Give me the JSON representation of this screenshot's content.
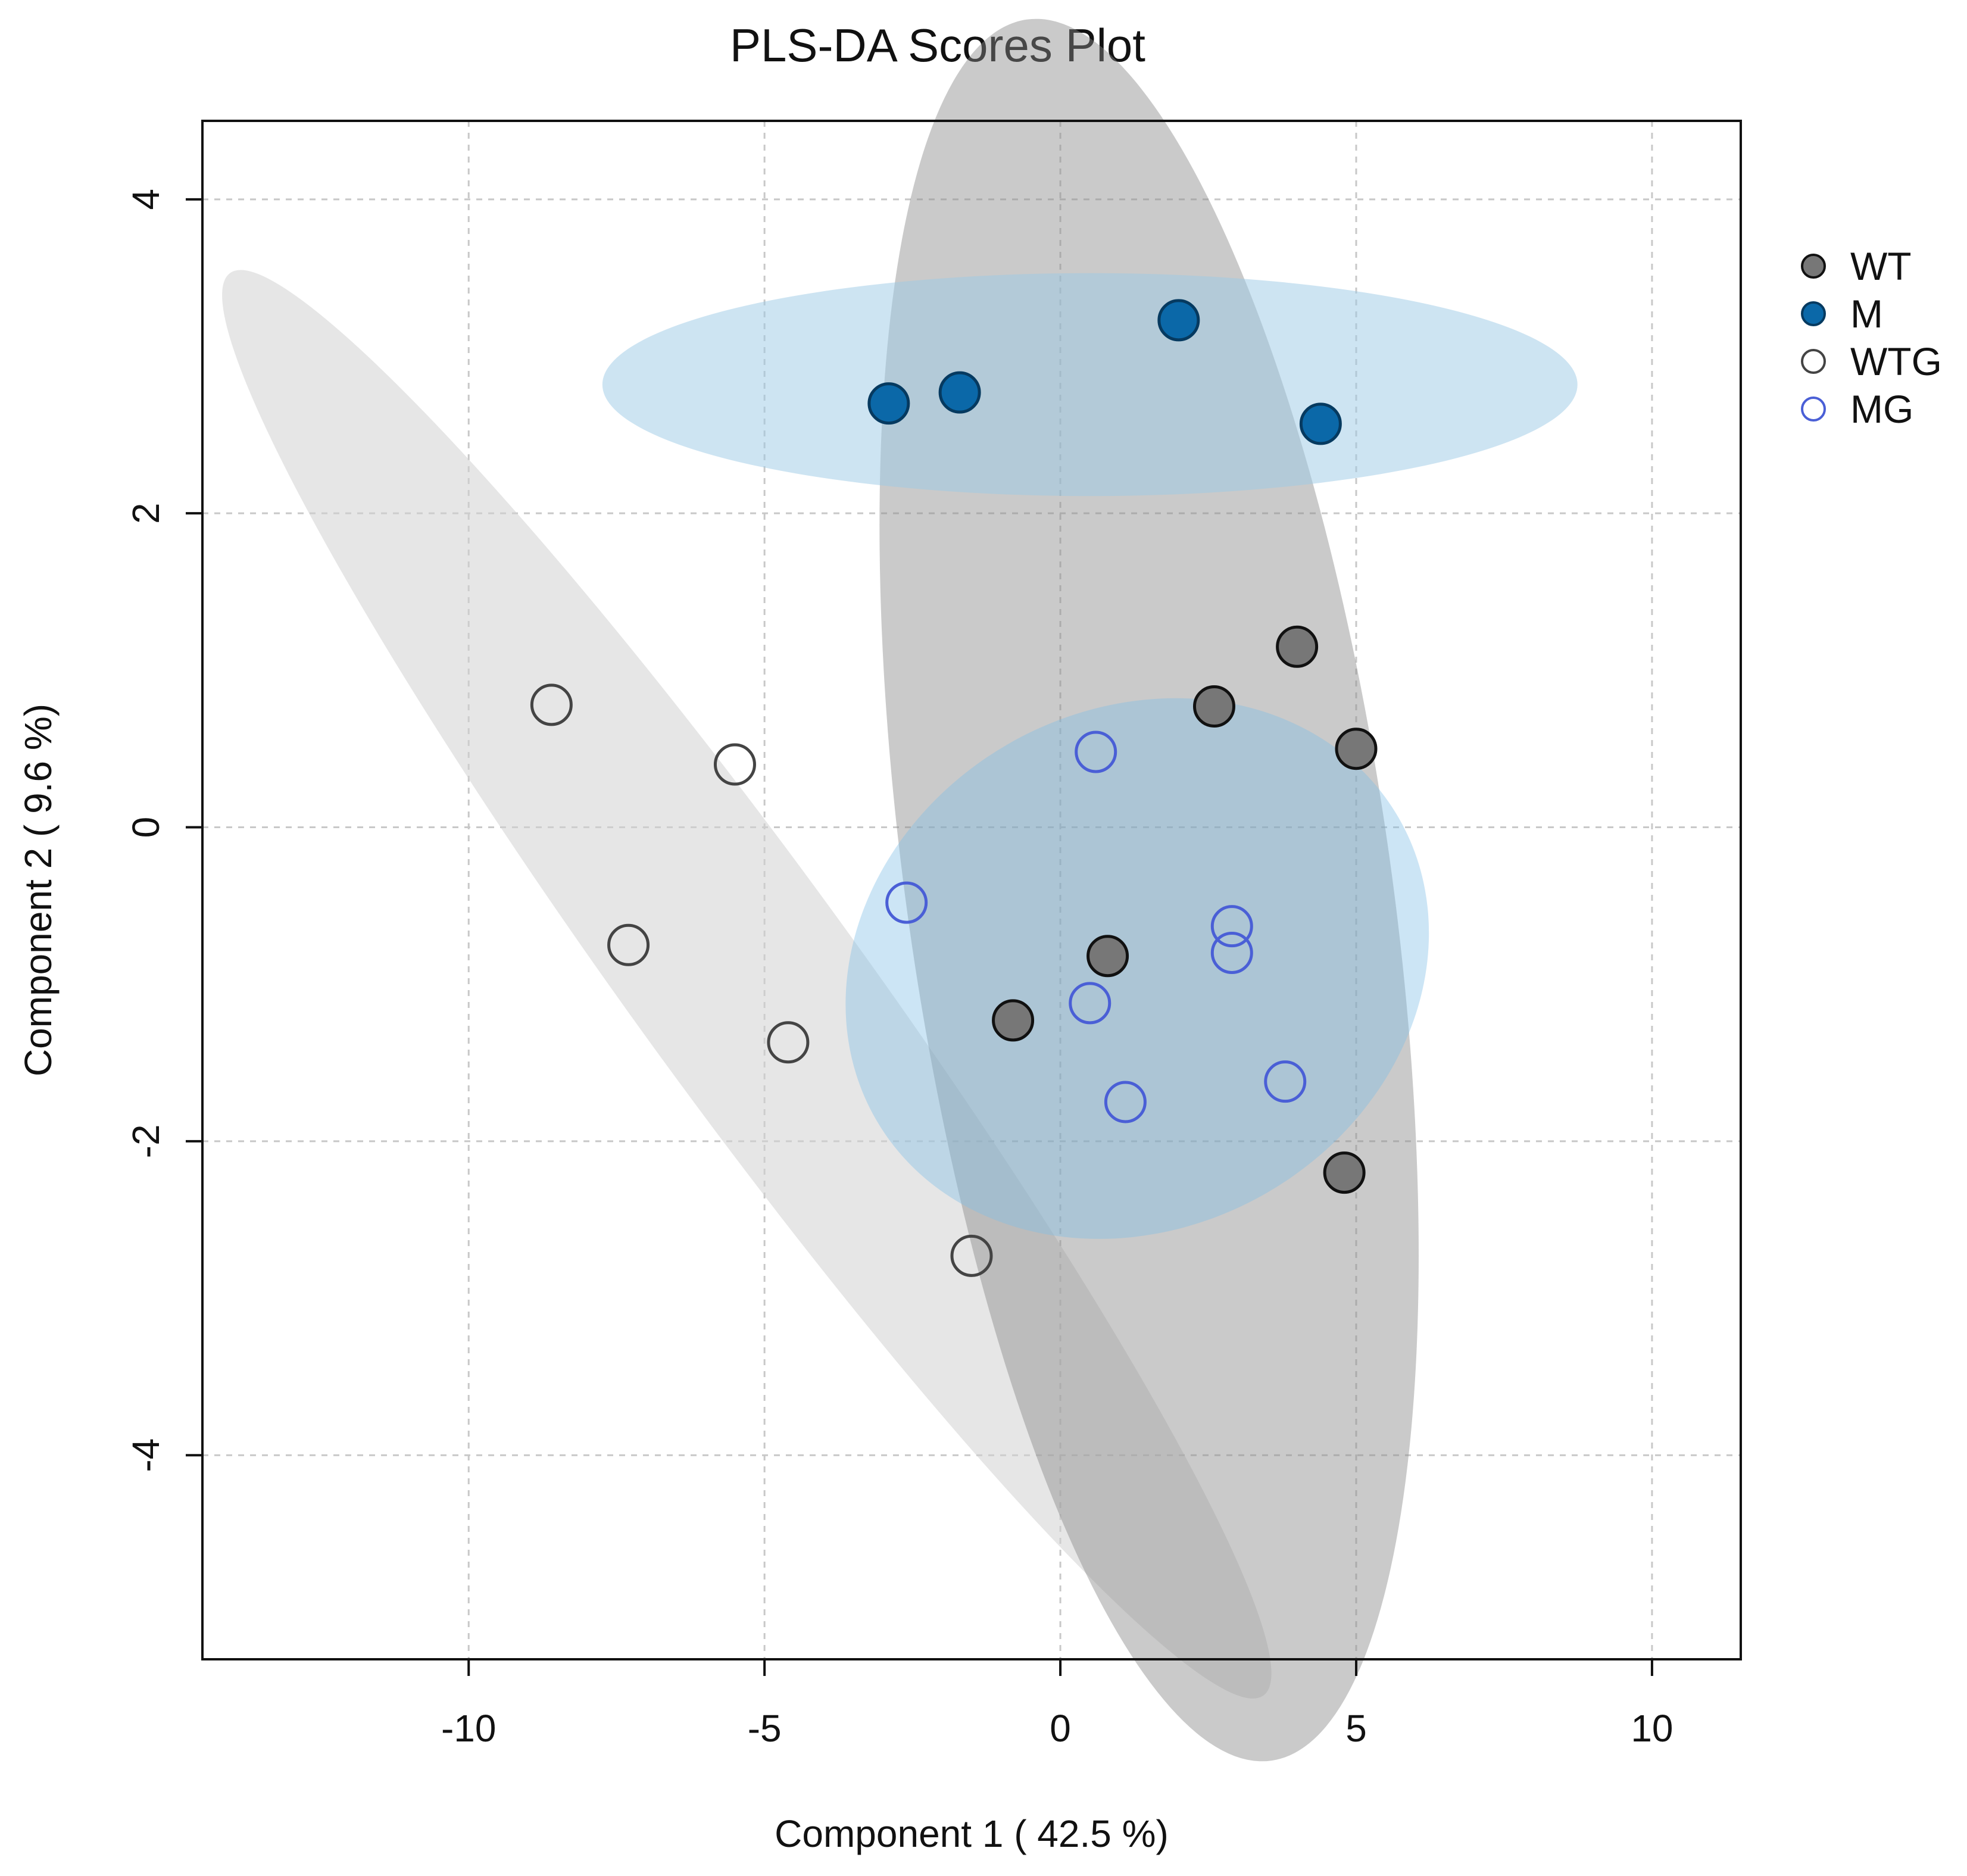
{
  "chart_data": {
    "type": "scatter",
    "title": "PLS-DA Scores Plot",
    "xlabel": "Component 1 ( 42.5 %)",
    "ylabel": "Component 2 ( 9.6 %)",
    "xlim": [
      -14.5,
      11.5
    ],
    "ylim": [
      -5.3,
      4.5
    ],
    "xticks": [
      -10,
      -5,
      0,
      5,
      10
    ],
    "xtick_labels": [
      "-10",
      "-5",
      "0",
      "5",
      "10"
    ],
    "yticks": [
      -4,
      -2,
      0,
      2,
      4
    ],
    "ytick_labels": [
      "-4",
      "-2",
      "0",
      "2",
      "4"
    ],
    "grid": true,
    "legend_position": "right",
    "series": [
      {
        "name": "WT",
        "label": "WT",
        "marker": "filled",
        "color": "#777777",
        "edge": "#111111",
        "points": [
          [
            4.0,
            1.15
          ],
          [
            2.6,
            0.77
          ],
          [
            5.0,
            0.5
          ],
          [
            0.8,
            -0.82
          ],
          [
            -0.8,
            -1.23
          ],
          [
            4.8,
            -2.2
          ]
        ],
        "ellipse": {
          "cx": 1.5,
          "cy": -0.4,
          "rx": 4.1,
          "ry": 5.6,
          "angle": -8,
          "fill": "#8a8a8a",
          "opacity": 0.45
        }
      },
      {
        "name": "M",
        "label": "M",
        "marker": "filled",
        "color": "#0b68a8",
        "edge": "#063a60",
        "points": [
          [
            2.0,
            3.23
          ],
          [
            -1.7,
            2.77
          ],
          [
            -2.9,
            2.7
          ],
          [
            4.4,
            2.57
          ]
        ],
        "ellipse": {
          "cx": 0.5,
          "cy": 2.82,
          "rx": 8.24,
          "ry": 0.71,
          "angle": 0,
          "fill": "#9ccae6",
          "opacity": 0.5
        }
      },
      {
        "name": "WTG",
        "label": "WTG",
        "marker": "open",
        "color": "#555555",
        "edge": "#444444",
        "points": [
          [
            -8.6,
            0.78
          ],
          [
            -5.5,
            0.4
          ],
          [
            -7.3,
            -0.75
          ],
          [
            -4.6,
            -1.37
          ],
          [
            -1.5,
            -2.73
          ]
        ],
        "ellipse": {
          "cx": -5.3,
          "cy": -1.0,
          "rx": 1.9,
          "ry": 5.6,
          "angle": -36,
          "fill": "#d2d2d2",
          "opacity": 0.55
        }
      },
      {
        "name": "MG",
        "label": "MG",
        "marker": "open",
        "color": "#4a5fd6",
        "edge": "#4a5fd6",
        "points": [
          [
            0.6,
            0.48
          ],
          [
            -2.6,
            -0.48
          ],
          [
            2.9,
            -0.63
          ],
          [
            2.9,
            -0.8
          ],
          [
            0.5,
            -1.12
          ],
          [
            1.1,
            -1.75
          ],
          [
            3.8,
            -1.62
          ]
        ],
        "ellipse": {
          "cx": 1.3,
          "cy": -0.9,
          "rx": 5.1,
          "ry": 1.65,
          "angle": -30,
          "fill": "#7fbfe6",
          "opacity": 0.4
        }
      }
    ]
  }
}
